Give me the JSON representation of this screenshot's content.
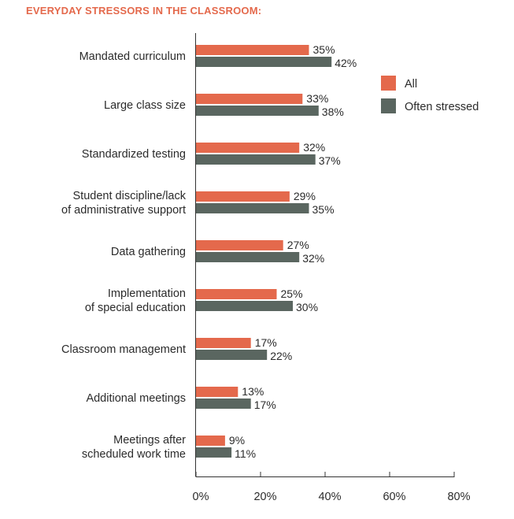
{
  "chart_data": {
    "type": "bar",
    "orientation": "horizontal",
    "title": "EVERYDAY STRESSORS IN THE CLASSROOM:",
    "xlabel": "",
    "ylabel": "",
    "xlim": [
      0,
      80
    ],
    "xticks": [
      0,
      20,
      40,
      60,
      80
    ],
    "xtick_labels": [
      "0%",
      "20%",
      "40%",
      "60%",
      "80%"
    ],
    "grid": false,
    "legend_position": "top-right",
    "categories": [
      [
        "Mandated curriculum"
      ],
      [
        "Large class size"
      ],
      [
        "Standardized testing"
      ],
      [
        "Student discipline/lack",
        "of administrative support"
      ],
      [
        "Data gathering"
      ],
      [
        "Implementation",
        "of special education"
      ],
      [
        "Classroom management"
      ],
      [
        "Additional meetings"
      ],
      [
        "Meetings after",
        "scheduled work time"
      ]
    ],
    "series": [
      {
        "name": "All",
        "color": "#e4694c",
        "values": [
          35,
          33,
          32,
          29,
          27,
          25,
          17,
          13,
          9
        ],
        "labels": [
          "35%",
          "33%",
          "32%",
          "29%",
          "27%",
          "25%",
          "17%",
          "13%",
          "9%"
        ]
      },
      {
        "name": "Often stressed",
        "color": "#5a6660",
        "values": [
          42,
          38,
          37,
          35,
          32,
          30,
          22,
          17,
          11
        ],
        "labels": [
          "42%",
          "38%",
          "37%",
          "35%",
          "32%",
          "30%",
          "22%",
          "17%",
          "11%"
        ]
      }
    ]
  }
}
